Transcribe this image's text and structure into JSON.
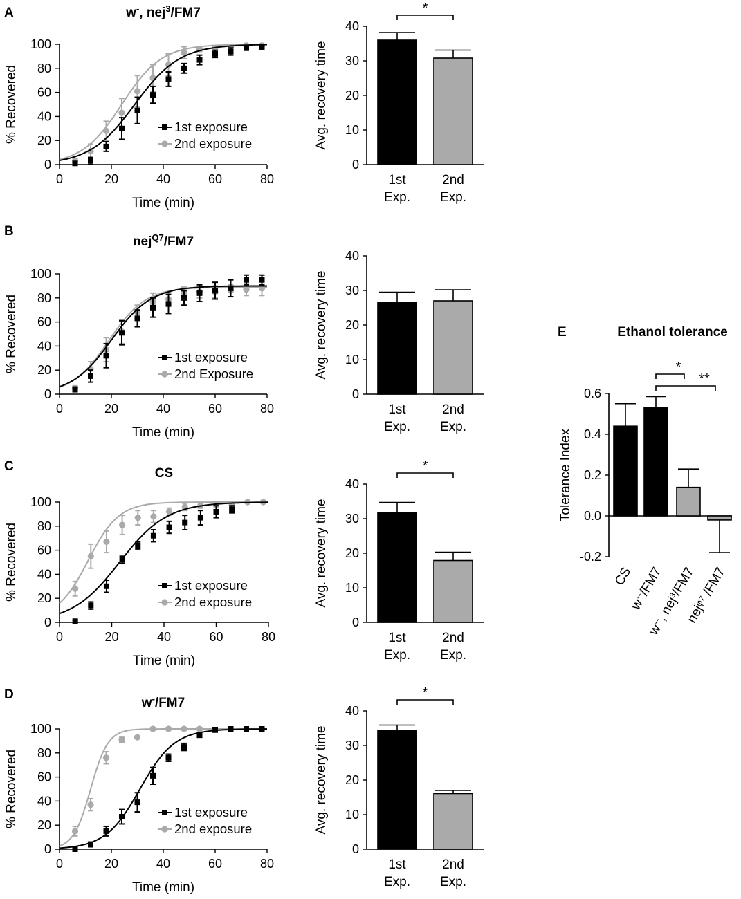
{
  "colors": {
    "first": "#000000",
    "second": "#aaaaaa"
  },
  "chart_data": [
    {
      "panel": "A",
      "type": "scatter",
      "title_main": "w",
      "title_sup1": "-",
      "title_mid": ", nej",
      "title_sup2": "3",
      "title_end": "/FM7",
      "xlabel": "Time (min)",
      "ylabel": "% Recovered",
      "xlim": [
        0,
        80
      ],
      "ylim": [
        0,
        100
      ],
      "xticks": [
        "0",
        "20",
        "40",
        "60",
        "80"
      ],
      "yticks": [
        "0",
        "20",
        "40",
        "60",
        "80",
        "100"
      ],
      "series": [
        {
          "name": "1st exposure",
          "fit": {
            "x50": 29,
            "k": 0.115,
            "top": 100,
            "bottom": 0
          },
          "x": [
            6,
            12,
            18,
            24,
            30,
            36,
            42,
            48,
            54,
            60,
            66,
            72,
            78
          ],
          "y": [
            1,
            3,
            15,
            30,
            45,
            58,
            71,
            80,
            87,
            92,
            94,
            97,
            98
          ],
          "err": [
            1,
            3,
            4,
            9,
            11,
            7,
            6,
            4,
            4,
            3,
            3,
            2,
            2
          ]
        },
        {
          "name": "2nd exposure",
          "fit": {
            "x50": 24,
            "k": 0.13,
            "top": 100,
            "bottom": 0
          },
          "x": [
            6,
            12,
            18,
            24,
            30,
            36,
            42,
            48,
            54,
            60,
            66,
            72,
            78
          ],
          "y": [
            3,
            11,
            28,
            43,
            61,
            72,
            83,
            93,
            96,
            97,
            98,
            99,
            99
          ],
          "err": [
            2,
            6,
            8,
            12,
            13,
            11,
            9,
            5,
            2,
            2,
            2,
            1,
            1
          ]
        }
      ]
    },
    {
      "panel": "A",
      "type": "bar",
      "ylabel": "Avg. recovery time",
      "ylim": [
        0,
        40
      ],
      "yticks": [
        "0",
        "10",
        "20",
        "30",
        "40"
      ],
      "categories": [
        [
          "1st",
          "Exp."
        ],
        [
          "2nd",
          "Exp."
        ]
      ],
      "values": [
        36,
        30.8
      ],
      "err": [
        2.2,
        2.3
      ],
      "significance": "*"
    },
    {
      "panel": "B",
      "type": "scatter",
      "title_main": "nej",
      "title_sup1": "Q7",
      "title_end": "/FM7",
      "xlabel": "Time (min)",
      "ylabel": "% Recovered",
      "xlim": [
        0,
        80
      ],
      "ylim": [
        0,
        100
      ],
      "xticks": [
        "0",
        "20",
        "40",
        "60",
        "80"
      ],
      "yticks": [
        "0",
        "20",
        "40",
        "60",
        "80",
        "100"
      ],
      "series": [
        {
          "name": "1st exposure",
          "fit": {
            "x50": 20,
            "k": 0.13,
            "top": 90,
            "bottom": 0
          },
          "x": [
            6,
            12,
            18,
            24,
            30,
            36,
            42,
            48,
            54,
            60,
            66,
            72,
            78
          ],
          "y": [
            4,
            15,
            32,
            51,
            63,
            72,
            75,
            80,
            84,
            86,
            88,
            95,
            95
          ],
          "err": [
            2,
            5,
            10,
            10,
            7,
            8,
            8,
            6,
            7,
            7,
            7,
            4,
            4
          ]
        },
        {
          "name": "2nd Exposure",
          "fit": {
            "x50": 19,
            "k": 0.14,
            "top": 89,
            "bottom": 0
          },
          "x": [
            6,
            12,
            18,
            24,
            30,
            36,
            42,
            48,
            54,
            60,
            66,
            72,
            78
          ],
          "y": [
            5,
            21,
            37,
            52,
            68,
            77,
            79,
            84,
            85,
            85,
            86,
            87,
            88
          ],
          "err": [
            2,
            6,
            10,
            10,
            6,
            7,
            6,
            5,
            5,
            5,
            5,
            5,
            6
          ]
        }
      ]
    },
    {
      "panel": "B",
      "type": "bar",
      "ylabel": "Avg. recovery time",
      "ylim": [
        0,
        40
      ],
      "yticks": [
        "0",
        "10",
        "20",
        "30",
        "40"
      ],
      "categories": [
        [
          "1st",
          "Exp."
        ],
        [
          "2nd",
          "Exp."
        ]
      ],
      "values": [
        26.6,
        27.0
      ],
      "err": [
        2.9,
        3.2
      ],
      "significance": ""
    },
    {
      "panel": "C",
      "type": "scatter",
      "title_main": "CS",
      "xlabel": "Time (min)",
      "ylabel": "% Recovered",
      "xlim": [
        0,
        80
      ],
      "ylim": [
        0,
        100
      ],
      "xticks": [
        "0",
        "20",
        "40",
        "60",
        "80"
      ],
      "yticks": [
        "0",
        "20",
        "40",
        "60",
        "80",
        "100"
      ],
      "series": [
        {
          "name": "1st exposure",
          "fit": {
            "x50": 23,
            "k": 0.11,
            "top": 100,
            "bottom": 0
          },
          "x": [
            6,
            12,
            18,
            24,
            30,
            36,
            42,
            48,
            54,
            60,
            66
          ],
          "y": [
            1,
            14,
            30,
            52,
            64,
            72,
            79,
            83,
            87,
            92,
            94
          ],
          "err": [
            1,
            3,
            5,
            3,
            3,
            5,
            5,
            6,
            6,
            5,
            3
          ]
        },
        {
          "name": "2nd exposure",
          "fit": {
            "x50": 11,
            "k": 0.17,
            "top": 100,
            "bottom": 3
          },
          "x": [
            6,
            12,
            18,
            24,
            30,
            36,
            42,
            48,
            54,
            60,
            66,
            72,
            78
          ],
          "y": [
            28,
            55,
            67,
            81,
            87,
            88,
            92,
            96,
            97,
            98,
            98,
            100,
            100
          ],
          "err": [
            6,
            10,
            9,
            8,
            6,
            5,
            3,
            3,
            2,
            2,
            2,
            1,
            1
          ]
        }
      ]
    },
    {
      "panel": "C",
      "type": "bar",
      "ylabel": "Avg. recovery time",
      "ylim": [
        0,
        40
      ],
      "yticks": [
        "0",
        "10",
        "20",
        "30",
        "40"
      ],
      "categories": [
        [
          "1st",
          "Exp."
        ],
        [
          "2nd",
          "Exp."
        ]
      ],
      "values": [
        31.8,
        17.9
      ],
      "err": [
        2.9,
        2.4
      ],
      "significance": "*"
    },
    {
      "panel": "D",
      "type": "scatter",
      "title_main": "w",
      "title_sup1": "-",
      "title_end": "/FM7",
      "xlabel": "Time (min)",
      "ylabel": "% Recovered",
      "xlim": [
        0,
        80
      ],
      "ylim": [
        0,
        100
      ],
      "xticks": [
        "0",
        "20",
        "40",
        "60",
        "80"
      ],
      "yticks": [
        "0",
        "20",
        "40",
        "60",
        "80",
        "100"
      ],
      "series": [
        {
          "name": "1st exposure",
          "fit": {
            "x50": 31,
            "k": 0.15,
            "top": 100,
            "bottom": 0
          },
          "x": [
            6,
            12,
            18,
            24,
            30,
            36,
            42,
            48,
            54,
            60,
            66,
            72,
            78
          ],
          "y": [
            0,
            4,
            15,
            27,
            39,
            61,
            76,
            85,
            95,
            99,
            100,
            100,
            100
          ],
          "err": [
            1,
            2,
            4,
            6,
            8,
            7,
            3,
            3,
            2,
            1,
            1,
            1,
            1
          ]
        },
        {
          "name": "2nd exposure",
          "fit": {
            "x50": 12,
            "k": 0.3,
            "top": 100,
            "bottom": 0
          },
          "x": [
            6,
            12,
            18,
            24,
            30,
            36,
            42,
            48,
            54
          ],
          "y": [
            15,
            37,
            76,
            91,
            93,
            100,
            100,
            100,
            100
          ],
          "err": [
            4,
            5,
            5,
            2,
            1,
            1,
            1,
            1,
            1
          ]
        }
      ]
    },
    {
      "panel": "D",
      "type": "bar",
      "ylabel": "Avg. recovery time",
      "ylim": [
        0,
        40
      ],
      "yticks": [
        "0",
        "10",
        "20",
        "30",
        "40"
      ],
      "categories": [
        [
          "1st",
          "Exp."
        ],
        [
          "2nd",
          "Exp."
        ]
      ],
      "values": [
        34.3,
        16.1
      ],
      "err": [
        1.6,
        0.9
      ],
      "significance": "*"
    },
    {
      "panel": "E",
      "type": "bar",
      "title_main": "Ethanol tolerance",
      "ylabel": "Tolerance Index",
      "ylim": [
        -0.2,
        0.6
      ],
      "yticks": [
        "-0.2",
        "0.0",
        "0.2",
        "0.4",
        "0.6"
      ],
      "categories": [
        "CS",
        "w⁻/FM7",
        "w⁻, nej³/FM7",
        "nejᵠ⁷ /FM7"
      ],
      "values": [
        0.44,
        0.53,
        0.14,
        -0.02
      ],
      "err": [
        0.11,
        0.055,
        0.09,
        0.16
      ],
      "err_dir": [
        "up",
        "up",
        "up",
        "down"
      ],
      "colors": [
        "#000000",
        "#000000",
        "#aaaaaa",
        "#aaaaaa"
      ],
      "significance": [
        {
          "from": 1,
          "to": 2,
          "label": "*"
        },
        {
          "from": 1,
          "to": 3,
          "label": "**"
        }
      ]
    }
  ]
}
